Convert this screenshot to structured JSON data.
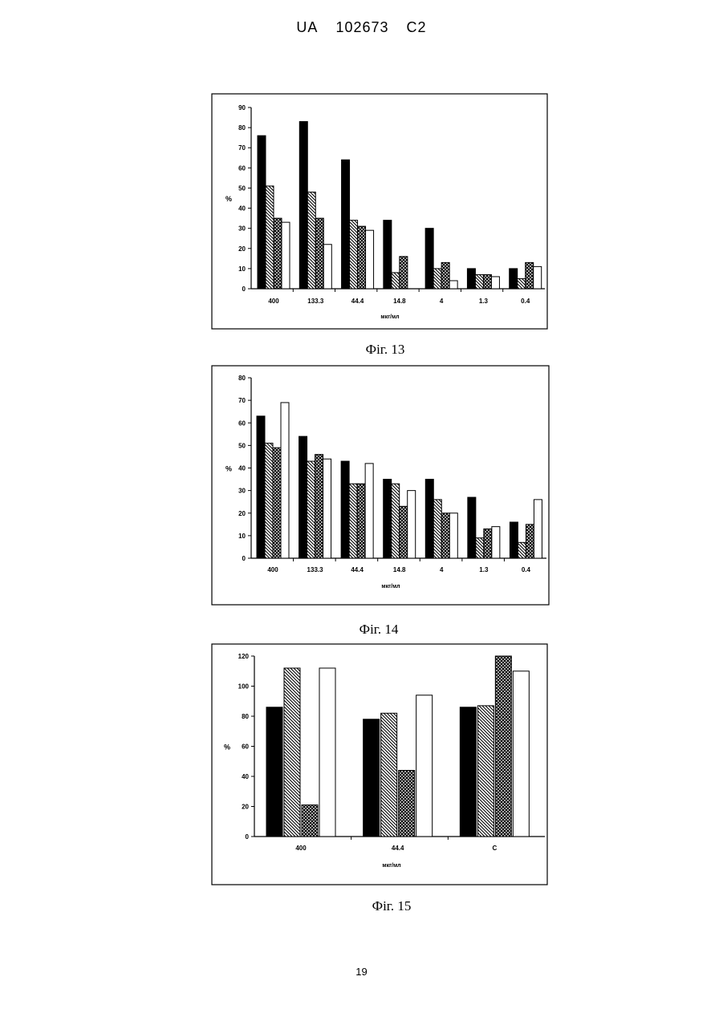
{
  "header": {
    "country": "UA",
    "number": "102673",
    "kind": "C2"
  },
  "page_number": "19",
  "chart_data": [
    {
      "type": "bar",
      "caption": "Фіг. 13",
      "ylabel": "%",
      "xlabel": "мкг/мл",
      "ylim": [
        0,
        90
      ],
      "yticks": [
        0,
        10,
        20,
        30,
        40,
        50,
        60,
        70,
        80,
        90
      ],
      "categories": [
        "400",
        "133.3",
        "44.4",
        "14.8",
        "4",
        "1.3",
        "0.4"
      ],
      "series": [
        {
          "fill": "solid",
          "values": [
            76,
            83,
            64,
            34,
            30,
            10,
            10
          ]
        },
        {
          "fill": "hatch",
          "values": [
            51,
            48,
            34,
            8,
            10,
            7,
            5
          ]
        },
        {
          "fill": "crosshatch",
          "values": [
            35,
            35,
            31,
            16,
            13,
            7,
            13
          ]
        },
        {
          "fill": "white",
          "values": [
            33,
            22,
            29,
            0,
            4,
            6,
            11
          ]
        }
      ]
    },
    {
      "type": "bar",
      "caption": "Фіг. 14",
      "ylabel": "%",
      "xlabel": "мкг/мл",
      "ylim": [
        0,
        80
      ],
      "yticks": [
        0,
        10,
        20,
        30,
        40,
        50,
        60,
        70,
        80
      ],
      "categories": [
        "400",
        "133.3",
        "44.4",
        "14.8",
        "4",
        "1.3",
        "0.4"
      ],
      "series": [
        {
          "fill": "solid",
          "values": [
            63,
            54,
            43,
            35,
            35,
            27,
            16
          ]
        },
        {
          "fill": "hatch",
          "values": [
            51,
            43,
            33,
            33,
            26,
            9,
            7
          ]
        },
        {
          "fill": "crosshatch",
          "values": [
            49,
            46,
            33,
            23,
            20,
            13,
            15
          ]
        },
        {
          "fill": "white",
          "values": [
            69,
            44,
            42,
            30,
            20,
            14,
            26
          ]
        }
      ]
    },
    {
      "type": "bar",
      "caption": "Фіг. 15",
      "ylabel": "%",
      "xlabel": "мкг/мл",
      "ylim": [
        0,
        120
      ],
      "yticks": [
        0,
        20,
        40,
        60,
        80,
        100,
        120
      ],
      "categories": [
        "400",
        "44.4",
        "C"
      ],
      "series": [
        {
          "fill": "solid",
          "values": [
            86,
            78,
            86
          ]
        },
        {
          "fill": "hatch",
          "values": [
            112,
            82,
            87
          ]
        },
        {
          "fill": "crosshatch",
          "values": [
            21,
            44,
            120
          ]
        },
        {
          "fill": "white",
          "values": [
            112,
            94,
            110
          ]
        }
      ]
    }
  ]
}
